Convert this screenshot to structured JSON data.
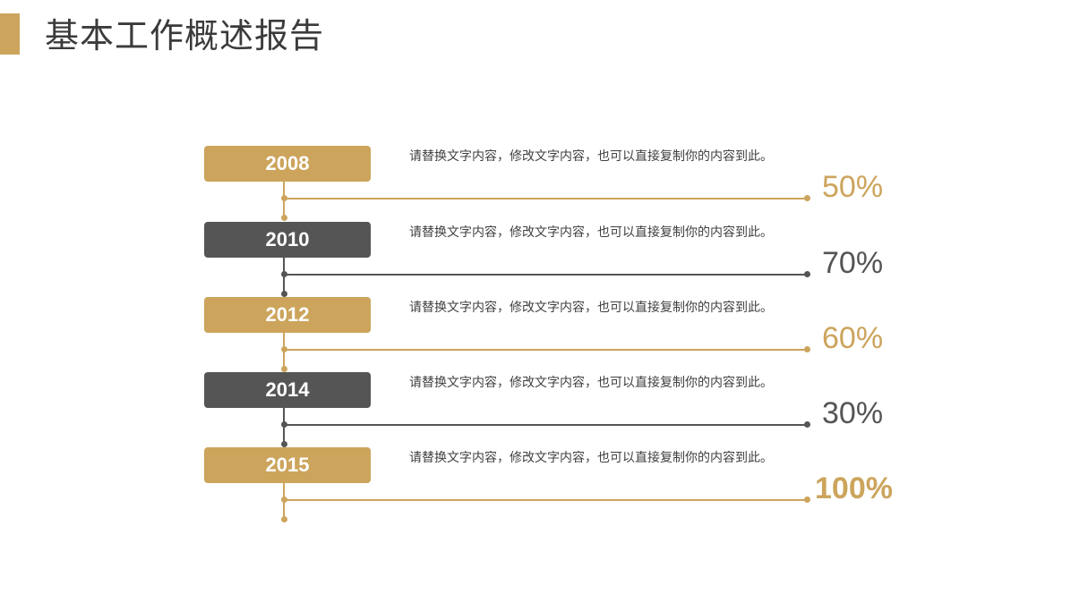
{
  "header": {
    "title": "基本工作概述报告"
  },
  "timeline": [
    {
      "year": "2008",
      "text": "请替换文字内容，修改文字内容，也可以直接复制你的内容到此。",
      "percent": "50%",
      "value": 50,
      "theme": "gold",
      "color": "#cca45c"
    },
    {
      "year": "2010",
      "text": "请替换文字内容，修改文字内容，也可以直接复制你的内容到此。",
      "percent": "70%",
      "value": 70,
      "theme": "gray",
      "color": "#555555"
    },
    {
      "year": "2012",
      "text": "请替换文字内容，修改文字内容，也可以直接复制你的内容到此。",
      "percent": "60%",
      "value": 60,
      "theme": "gold",
      "color": "#cca45c"
    },
    {
      "year": "2014",
      "text": "请替换文字内容，修改文字内容，也可以直接复制你的内容到此。",
      "percent": "30%",
      "value": 30,
      "theme": "gray",
      "color": "#555555"
    },
    {
      "year": "2015",
      "text": "请替换文字内容，修改文字内容，也可以直接复制你的内容到此。",
      "percent": "100%",
      "value": 100,
      "theme": "gold",
      "color": "#cca45c"
    }
  ]
}
